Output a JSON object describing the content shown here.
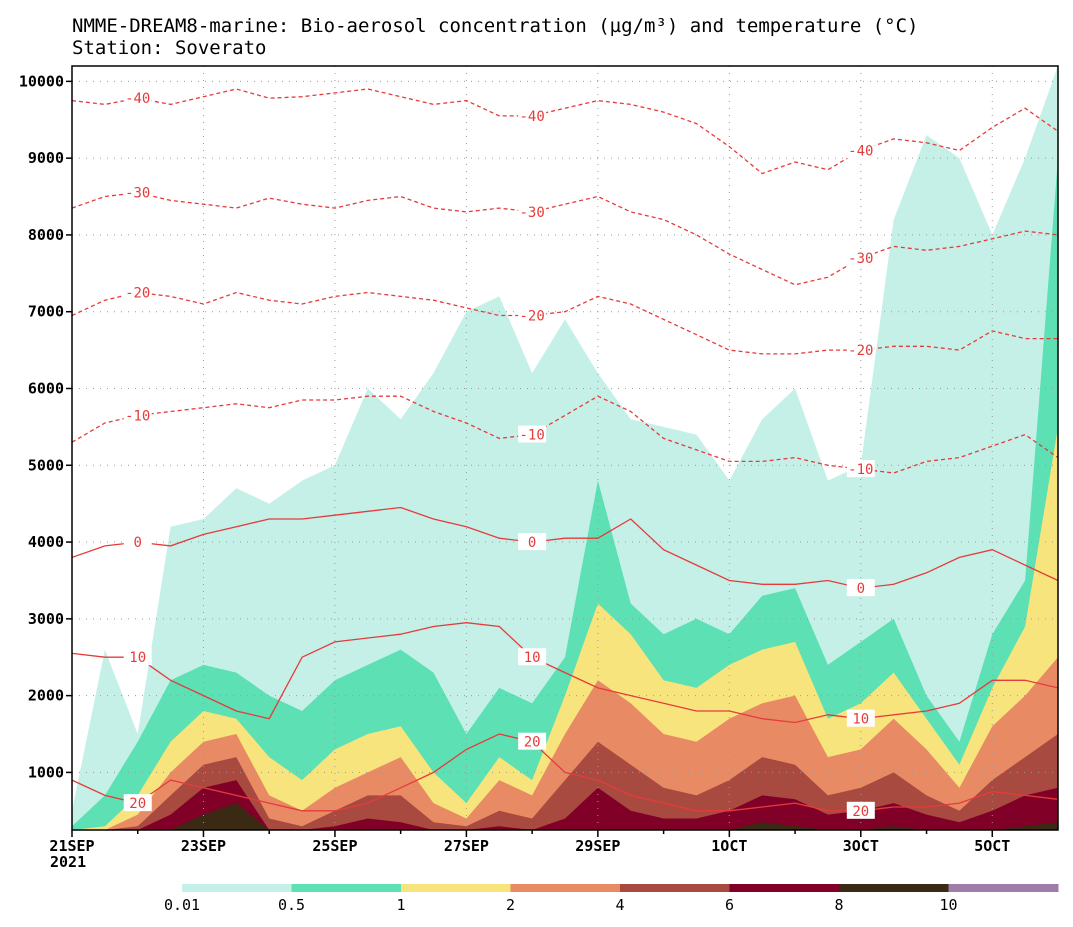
{
  "chart_data": {
    "type": "area",
    "title": "NMME-DREAM8-marine: Bio-aerosol concentration (µg/m³) and temperature (°C)",
    "subtitle": "Station: Soverato",
    "xlabel": "",
    "ylabel": "",
    "x_ticks": [
      "21SEP",
      "23SEP",
      "25SEP",
      "27SEP",
      "29SEP",
      "1OCT",
      "3OCT",
      "5OCT"
    ],
    "x_tick_days": [
      0,
      2,
      4,
      6,
      8,
      10,
      12,
      14
    ],
    "x_year_label": "2021",
    "xlim_days": [
      0,
      15
    ],
    "y_ticks": [
      1000,
      2000,
      3000,
      4000,
      5000,
      6000,
      7000,
      8000,
      9000,
      10000
    ],
    "ylim": [
      250,
      10200
    ],
    "grid": true,
    "colorbar": {
      "levels": [
        "0.01",
        "0.5",
        "1",
        "2",
        "4",
        "6",
        "8",
        "10"
      ],
      "colors": [
        "#c4f0e8",
        "#5ce0b4",
        "#f8e47c",
        "#e88b64",
        "#a84a40",
        "#800028",
        "#3a2a14",
        "#a07ca8"
      ]
    },
    "fill_colors": [
      "#c4f0e8",
      "#5ce0b4",
      "#f8e47c",
      "#e88b64",
      "#a84a40",
      "#800028",
      "#3a2a14"
    ],
    "concentration_top_heights_m": {
      "days": [
        0,
        0.5,
        1,
        1.5,
        2,
        2.5,
        3,
        3.5,
        4,
        4.5,
        5,
        5.5,
        6,
        6.5,
        7,
        7.5,
        8,
        8.5,
        9,
        9.5,
        10,
        10.5,
        11,
        11.5,
        12,
        12.5,
        13,
        13.5,
        14,
        14.5,
        15
      ],
      "levels": [
        {
          "threshold": "0.01",
          "heights": [
            500,
            2600,
            1500,
            4200,
            4300,
            4700,
            4500,
            4800,
            5000,
            6000,
            5600,
            6200,
            7000,
            7200,
            6200,
            6900,
            6200,
            5600,
            5500,
            5400,
            4800,
            5600,
            6000,
            4800,
            5000,
            8200,
            9300,
            9000,
            8000,
            9000,
            10200
          ]
        },
        {
          "threshold": "0.5",
          "heights": [
            300,
            700,
            1400,
            2200,
            2400,
            2300,
            2000,
            1800,
            2200,
            2400,
            2600,
            2300,
            1500,
            2100,
            1900,
            2500,
            4800,
            3200,
            2800,
            3000,
            2800,
            3300,
            3400,
            2400,
            2700,
            3000,
            2000,
            1400,
            2800,
            3500,
            9000
          ]
        },
        {
          "threshold": "1",
          "heights": [
            250,
            300,
            700,
            1400,
            1800,
            1700,
            1200,
            900,
            1300,
            1500,
            1600,
            1000,
            600,
            1200,
            900,
            2000,
            3200,
            2800,
            2200,
            2100,
            2400,
            2600,
            2700,
            1700,
            1900,
            2300,
            1700,
            1100,
            2100,
            2900,
            5500
          ]
        },
        {
          "threshold": "2",
          "heights": [
            250,
            250,
            450,
            1000,
            1400,
            1500,
            700,
            500,
            800,
            1000,
            1200,
            600,
            400,
            900,
            700,
            1500,
            2200,
            1900,
            1500,
            1400,
            1700,
            1900,
            2000,
            1200,
            1300,
            1700,
            1300,
            800,
            1600,
            2000,
            2500
          ]
        },
        {
          "threshold": "4",
          "heights": [
            250,
            250,
            300,
            700,
            1100,
            1200,
            400,
            300,
            500,
            700,
            700,
            350,
            300,
            500,
            400,
            900,
            1400,
            1100,
            800,
            700,
            900,
            1200,
            1100,
            700,
            800,
            1000,
            700,
            500,
            900,
            1200,
            1500
          ]
        },
        {
          "threshold": "6",
          "heights": [
            250,
            250,
            250,
            450,
            800,
            900,
            250,
            250,
            300,
            400,
            350,
            250,
            250,
            300,
            250,
            400,
            800,
            500,
            400,
            400,
            500,
            700,
            650,
            450,
            500,
            600,
            450,
            350,
            500,
            700,
            800
          ]
        },
        {
          "threshold": "8",
          "heights": [
            250,
            250,
            250,
            250,
            450,
            600,
            250,
            250,
            250,
            250,
            250,
            250,
            250,
            250,
            250,
            250,
            250,
            250,
            250,
            250,
            250,
            350,
            300,
            250,
            250,
            300,
            250,
            250,
            250,
            300,
            350
          ]
        }
      ]
    },
    "temperature_isotherms_m": {
      "days": [
        0,
        0.5,
        1,
        1.5,
        2,
        2.5,
        3,
        3.5,
        4,
        4.5,
        5,
        5.5,
        6,
        6.5,
        7,
        7.5,
        8,
        8.5,
        9,
        9.5,
        10,
        10.5,
        11,
        11.5,
        12,
        12.5,
        13,
        13.5,
        14,
        14.5,
        15
      ],
      "lines": [
        {
          "level": "-40",
          "heights": [
            9750,
            9700,
            9780,
            9700,
            9800,
            9900,
            9780,
            9800,
            9850,
            9900,
            9800,
            9700,
            9750,
            9550,
            9550,
            9650,
            9750,
            9700,
            9600,
            9450,
            9150,
            8800,
            8950,
            8850,
            9100,
            9250,
            9200,
            9100,
            9400,
            9650,
            9350
          ]
        },
        {
          "level": "-30",
          "heights": [
            8350,
            8500,
            8550,
            8450,
            8400,
            8350,
            8480,
            8400,
            8350,
            8450,
            8500,
            8350,
            8300,
            8350,
            8300,
            8400,
            8500,
            8300,
            8200,
            8000,
            7750,
            7550,
            7350,
            7450,
            7700,
            7850,
            7800,
            7850,
            7950,
            8050,
            8000
          ]
        },
        {
          "level": "-20",
          "heights": [
            6950,
            7150,
            7250,
            7200,
            7100,
            7250,
            7150,
            7100,
            7200,
            7250,
            7200,
            7150,
            7050,
            6950,
            6950,
            7000,
            7200,
            7100,
            6900,
            6700,
            6500,
            6450,
            6450,
            6500,
            6500,
            6550,
            6550,
            6500,
            6750,
            6650,
            6650
          ]
        },
        {
          "level": "-10",
          "heights": [
            5300,
            5550,
            5650,
            5700,
            5750,
            5800,
            5750,
            5850,
            5850,
            5900,
            5900,
            5700,
            5550,
            5350,
            5400,
            5650,
            5900,
            5700,
            5350,
            5200,
            5050,
            5050,
            5100,
            5000,
            4950,
            4900,
            5050,
            5100,
            5250,
            5400,
            5100
          ]
        },
        {
          "level": "0",
          "heights": [
            3800,
            3950,
            4000,
            3950,
            4100,
            4200,
            4300,
            4300,
            4350,
            4400,
            4450,
            4300,
            4200,
            4050,
            4000,
            4050,
            4050,
            4300,
            3900,
            3700,
            3500,
            3450,
            3450,
            3500,
            3400,
            3450,
            3600,
            3800,
            3900,
            3700,
            3500
          ]
        },
        {
          "level": "10",
          "heights": [
            2550,
            2500,
            2500,
            2200,
            2000,
            1800,
            1700,
            2500,
            2700,
            2750,
            2800,
            2900,
            2950,
            2900,
            2500,
            2300,
            2100,
            2000,
            1900,
            1800,
            1800,
            1700,
            1650,
            1750,
            1700,
            1750,
            1800,
            1900,
            2200,
            2200,
            2100
          ]
        },
        {
          "level": "20",
          "heights": [
            900,
            700,
            600,
            900,
            800,
            700,
            600,
            500,
            500,
            600,
            800,
            1000,
            1300,
            1500,
            1400,
            1000,
            900,
            700,
            600,
            500,
            500,
            550,
            600,
            500,
            500,
            550,
            550,
            600,
            750,
            700,
            650
          ]
        }
      ]
    }
  }
}
